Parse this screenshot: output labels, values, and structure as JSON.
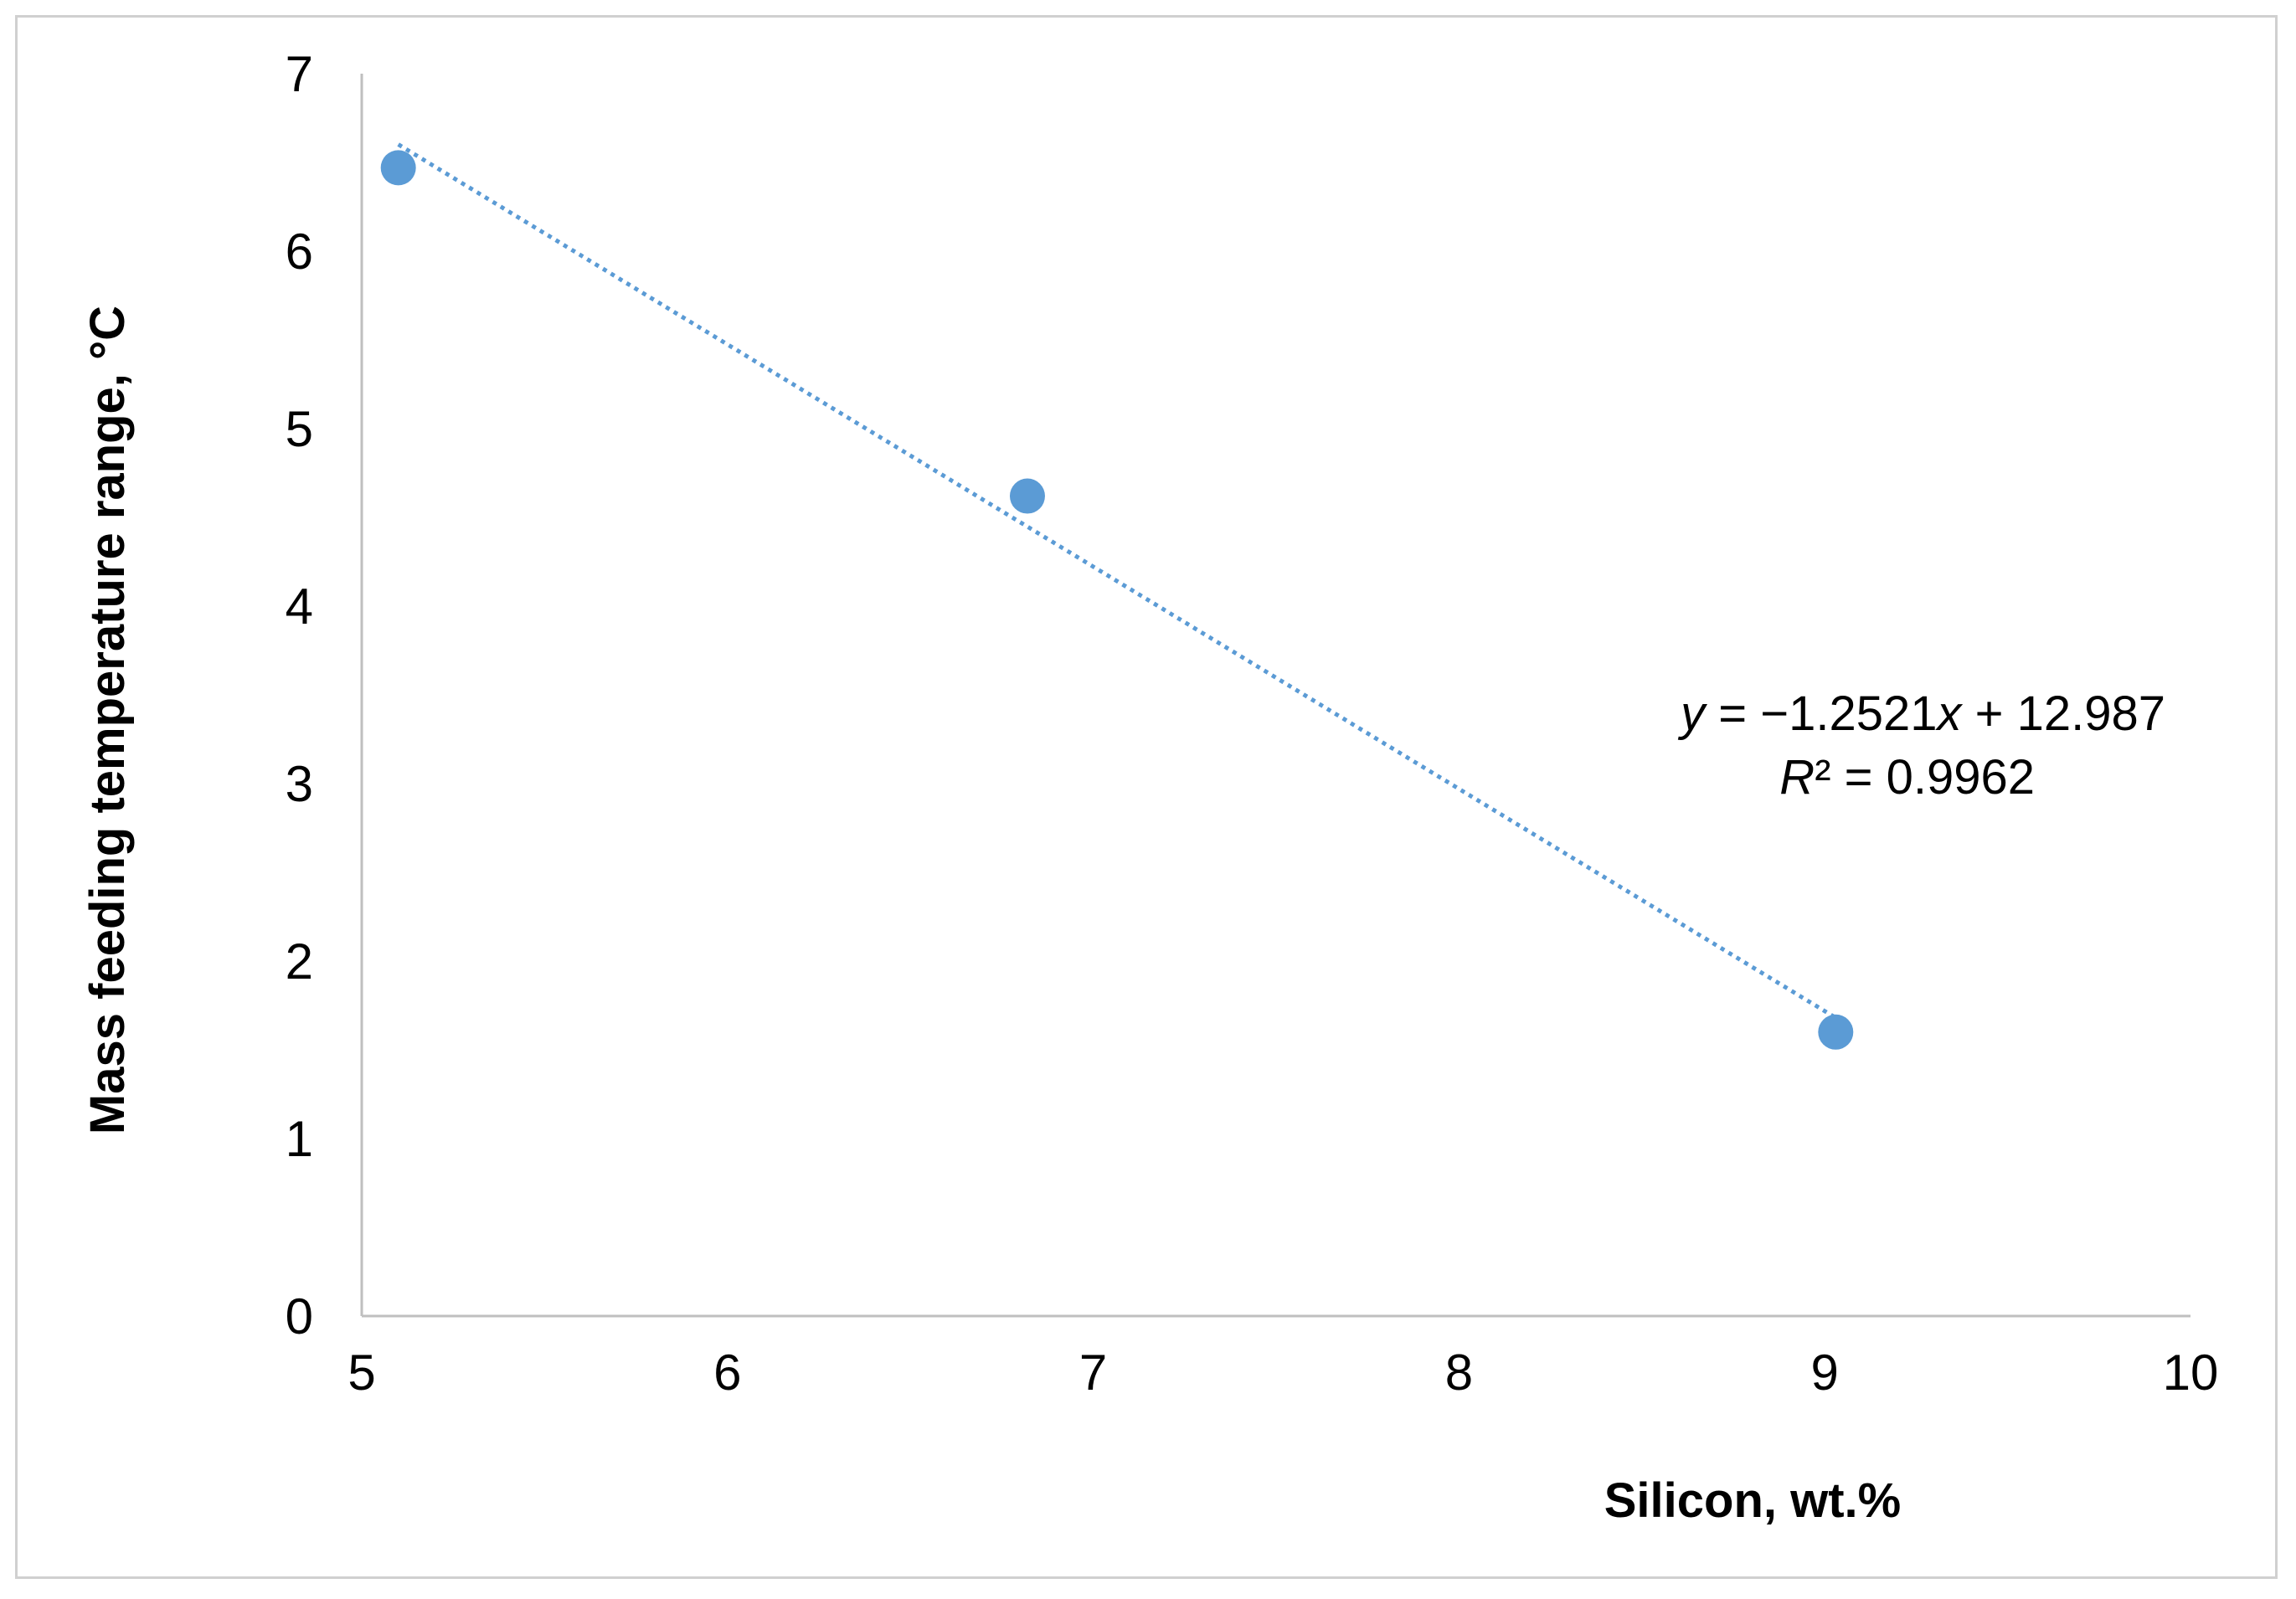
{
  "chart_data": {
    "type": "scatter",
    "title": "",
    "xlabel": "Silicon, wt.%",
    "ylabel": "Mass feeding temperature range, °C",
    "xlim": [
      5,
      10
    ],
    "ylim": [
      0,
      7
    ],
    "xticks": [
      "5",
      "6",
      "7",
      "8",
      "9",
      "10"
    ],
    "yticks": [
      "0",
      "1",
      "2",
      "3",
      "4",
      "5",
      "6",
      "7"
    ],
    "grid": false,
    "legend": "none",
    "points": [
      {
        "x": 5.1,
        "y": 6.47
      },
      {
        "x": 6.82,
        "y": 4.62
      },
      {
        "x": 9.03,
        "y": 1.6
      }
    ],
    "trendline": {
      "type": "linear",
      "style": "dotted",
      "slope": -1.2521,
      "intercept": 12.987,
      "x_range": [
        5.1,
        9.03
      ],
      "equation_label": "y = −1.2521x + 12.987",
      "r2_label": "R² = 0.9962"
    },
    "colors": {
      "marker": "#5b9bd5",
      "axis": "#bfbfbf"
    }
  }
}
